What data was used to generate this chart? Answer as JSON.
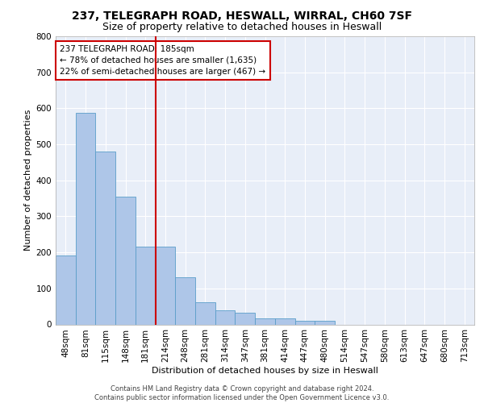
{
  "title_line1": "237, TELEGRAPH ROAD, HESWALL, WIRRAL, CH60 7SF",
  "title_line2": "Size of property relative to detached houses in Heswall",
  "xlabel": "Distribution of detached houses by size in Heswall",
  "ylabel": "Number of detached properties",
  "footnote": "Contains HM Land Registry data © Crown copyright and database right 2024.\nContains public sector information licensed under the Open Government Licence v3.0.",
  "bar_labels": [
    "48sqm",
    "81sqm",
    "115sqm",
    "148sqm",
    "181sqm",
    "214sqm",
    "248sqm",
    "281sqm",
    "314sqm",
    "347sqm",
    "381sqm",
    "414sqm",
    "447sqm",
    "480sqm",
    "514sqm",
    "547sqm",
    "580sqm",
    "613sqm",
    "647sqm",
    "680sqm",
    "713sqm"
  ],
  "bar_values": [
    192,
    588,
    480,
    355,
    215,
    215,
    130,
    62,
    40,
    32,
    16,
    16,
    11,
    11,
    0,
    0,
    0,
    0,
    0,
    0,
    0
  ],
  "bar_color": "#aec6e8",
  "bar_edge_color": "#5a9ec9",
  "background_color": "#e8eef8",
  "grid_color": "#ffffff",
  "ylim": [
    0,
    800
  ],
  "yticks": [
    0,
    100,
    200,
    300,
    400,
    500,
    600,
    700,
    800
  ],
  "vline_x": 4.5,
  "vline_color": "#cc0000",
  "annotation_line1": "237 TELEGRAPH ROAD: 185sqm",
  "annotation_line2": "← 78% of detached houses are smaller (1,635)",
  "annotation_line3": "22% of semi-detached houses are larger (467) →",
  "annotation_box_color": "#ffffff",
  "annotation_box_edge_color": "#cc0000",
  "title_fontsize": 10,
  "subtitle_fontsize": 9,
  "axis_label_fontsize": 8,
  "tick_fontsize": 7.5,
  "annotation_fontsize": 7.5,
  "footnote_fontsize": 6
}
